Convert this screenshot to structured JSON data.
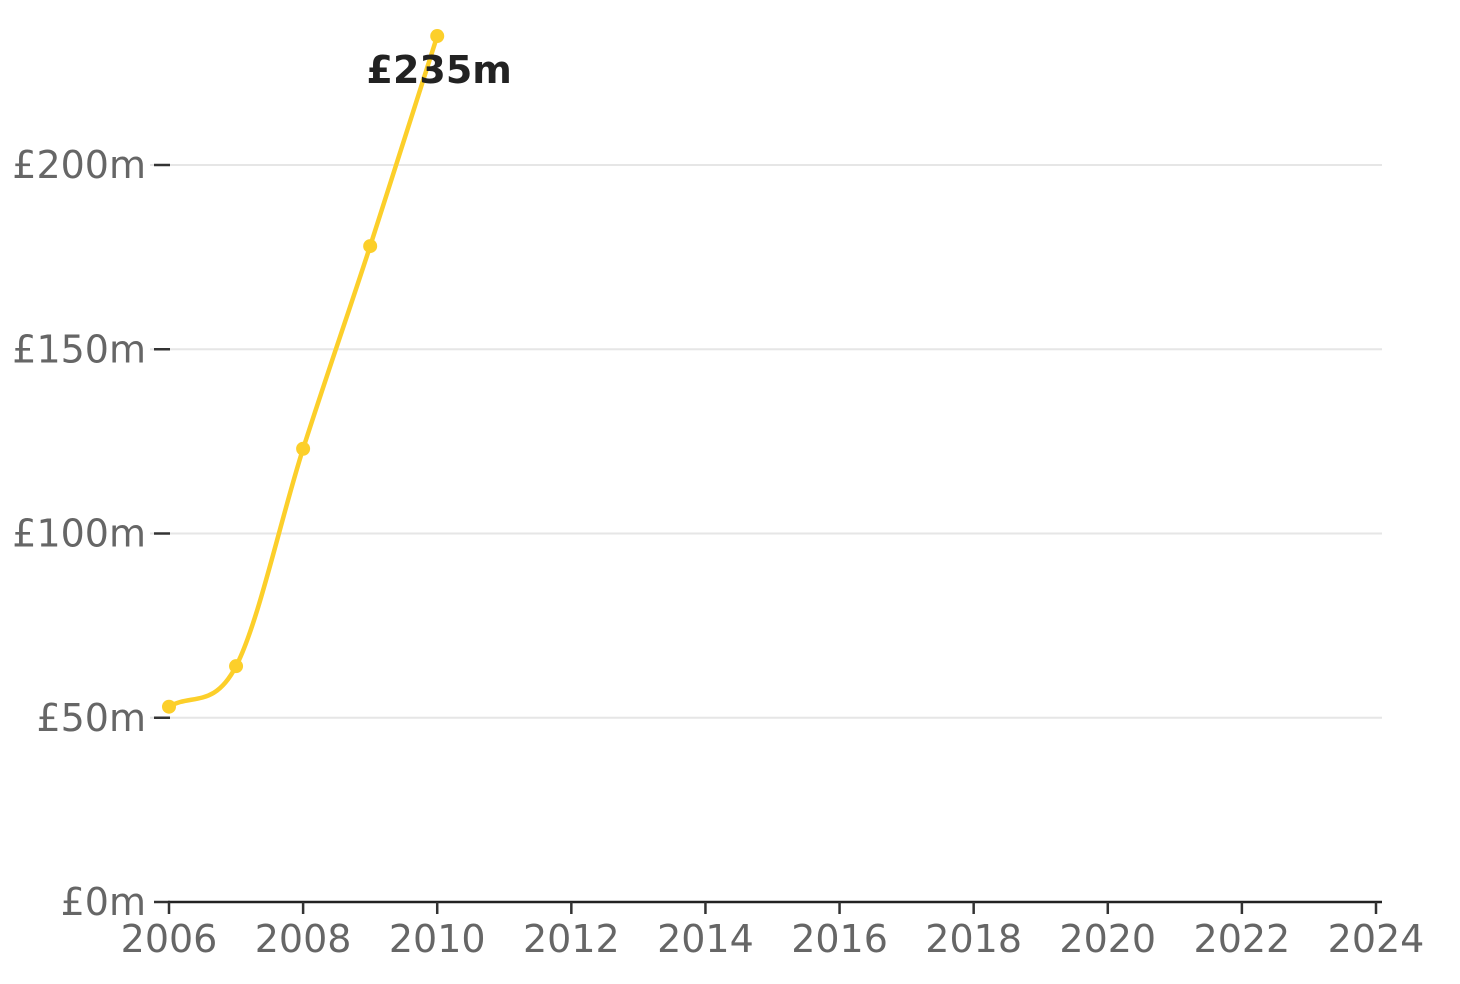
{
  "chart_data": {
    "type": "line",
    "title": "",
    "xlabel": "",
    "ylabel": "",
    "x": [
      2006,
      2007,
      2008,
      2009,
      2010
    ],
    "series": [
      {
        "values": [
          53,
          64,
          123,
          178,
          235
        ],
        "color": "#fccf2a"
      }
    ],
    "xlim": [
      2006,
      2024
    ],
    "ylim": [
      0,
      235
    ],
    "x_ticks": [
      "2006",
      "2008",
      "2010",
      "2012",
      "2014",
      "2016",
      "2018",
      "2020",
      "2022",
      "2024"
    ],
    "y_ticks": [
      {
        "value": 0,
        "label": "£0m"
      },
      {
        "value": 50,
        "label": "£50m"
      },
      {
        "value": 100,
        "label": "£100m"
      },
      {
        "value": 150,
        "label": "£150m"
      },
      {
        "value": 200,
        "label": "£200m"
      }
    ],
    "annotations": [
      {
        "x": 2010,
        "y": 235,
        "label": "£235m"
      }
    ],
    "grid": true,
    "legend": "none"
  }
}
